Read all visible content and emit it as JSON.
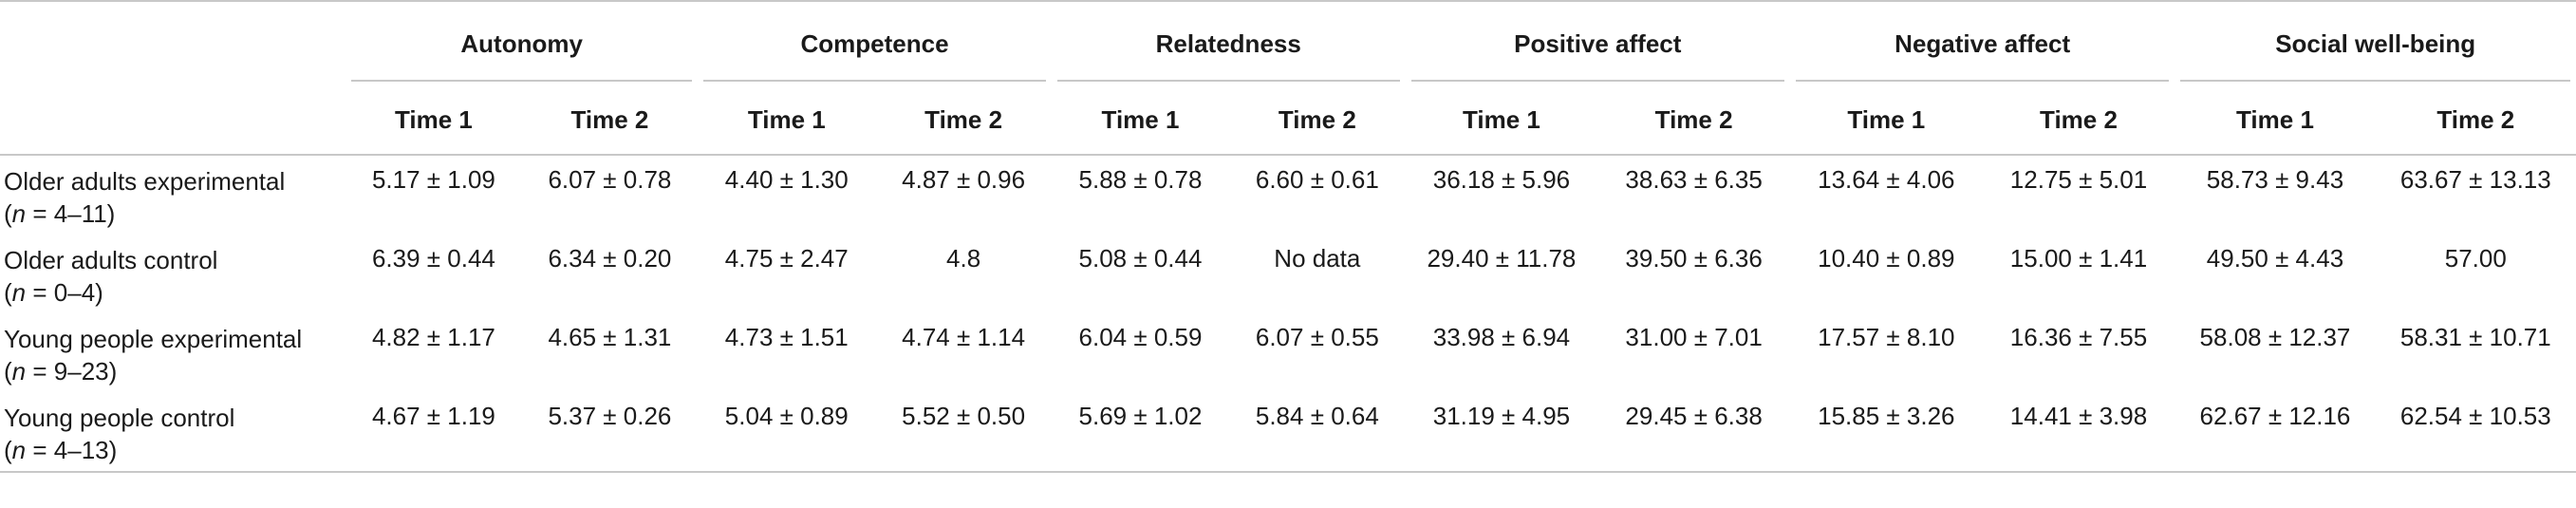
{
  "groups": [
    "Autonomy",
    "Competence",
    "Relatedness",
    "Positive affect",
    "Negative affect",
    "Social well-being"
  ],
  "time_labels": [
    "Time 1",
    "Time 2"
  ],
  "rows": [
    {
      "label": "Older adults experimental",
      "n_prefix": "(",
      "n_italic": "n",
      "n_suffix": " = 4–11)",
      "values": [
        "5.17 ± 1.09",
        "6.07 ± 0.78",
        "4.40 ± 1.30",
        "4.87 ± 0.96",
        "5.88 ± 0.78",
        "6.60 ± 0.61",
        "36.18 ± 5.96",
        "38.63 ± 6.35",
        "13.64 ± 4.06",
        "12.75 ± 5.01",
        "58.73 ± 9.43",
        "63.67 ± 13.13"
      ]
    },
    {
      "label": "Older adults control",
      "n_prefix": "(",
      "n_italic": "n",
      "n_suffix": " = 0–4)",
      "values": [
        "6.39 ± 0.44",
        "6.34 ± 0.20",
        "4.75 ± 2.47",
        "4.8",
        "5.08 ± 0.44",
        "No data",
        "29.40 ± 11.78",
        "39.50 ± 6.36",
        "10.40 ± 0.89",
        "15.00 ± 1.41",
        "49.50 ± 4.43",
        "57.00"
      ]
    },
    {
      "label": "Young people experimental",
      "n_prefix": "(",
      "n_italic": "n",
      "n_suffix": " = 9–23)",
      "values": [
        "4.82 ± 1.17",
        "4.65 ± 1.31",
        "4.73 ± 1.51",
        "4.74 ± 1.14",
        "6.04 ± 0.59",
        "6.07 ± 0.55",
        "33.98 ± 6.94",
        "31.00 ± 7.01",
        "17.57 ± 8.10",
        "16.36 ± 7.55",
        "58.08 ± 12.37",
        "58.31 ± 10.71"
      ]
    },
    {
      "label": "Young people control",
      "n_prefix": "(",
      "n_italic": "n",
      "n_suffix": " = 4–13)",
      "values": [
        "4.67 ± 1.19",
        "5.37 ± 0.26",
        "5.04 ± 0.89",
        "5.52 ± 0.50",
        "5.69 ± 1.02",
        "5.84 ± 0.64",
        "31.19 ± 4.95",
        "29.45 ± 6.38",
        "15.85 ± 3.26",
        "14.41 ± 3.98",
        "62.67 ± 12.16",
        "62.54 ± 10.53"
      ]
    }
  ]
}
